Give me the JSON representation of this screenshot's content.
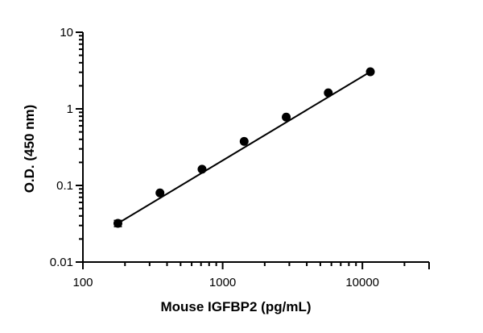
{
  "chart_data": {
    "type": "scatter",
    "title": "",
    "xlabel": "Mouse IGFBP2 (pg/mL)",
    "ylabel": "O.D. (450 nm)",
    "xscale": "log",
    "yscale": "log",
    "xlim": [
      100,
      30000
    ],
    "ylim": [
      0.01,
      10
    ],
    "xticks": [
      100,
      1000,
      10000
    ],
    "xtick_labels": [
      "100",
      "1000",
      "10000"
    ],
    "yticks": [
      0.01,
      0.1,
      1,
      10
    ],
    "ytick_labels": [
      "0.01",
      "0.1",
      "1",
      "10"
    ],
    "grid": false,
    "legend": "none",
    "marker_color": "#000000",
    "line_color": "#000000",
    "points": [
      {
        "x": 178,
        "y": 0.032,
        "y_err": [
          0.029,
          0.035
        ]
      },
      {
        "x": 356,
        "y": 0.08
      },
      {
        "x": 712,
        "y": 0.163
      },
      {
        "x": 1425,
        "y": 0.376
      },
      {
        "x": 2850,
        "y": 0.78
      },
      {
        "x": 5700,
        "y": 1.62
      },
      {
        "x": 11400,
        "y": 3.05
      }
    ],
    "fit_line": {
      "x": [
        178,
        11400
      ],
      "y": [
        0.032,
        3.05
      ]
    }
  }
}
